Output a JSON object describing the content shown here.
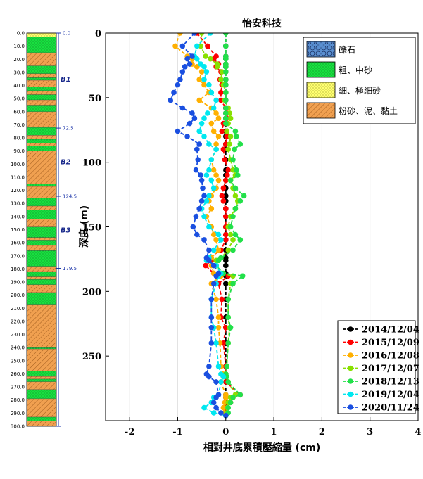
{
  "chart_data": {
    "type": "line",
    "title": "怡安科技",
    "xlabel": "相對井底累積壓縮量 (cm)",
    "ylabel": "深度 (m)",
    "xlim": [
      -2.5,
      4
    ],
    "ylim": [
      0,
      300
    ],
    "x_ticks": [
      "-2",
      "-1",
      "0",
      "1",
      "2",
      "3",
      "4"
    ],
    "x_tick_values": [
      -2,
      -1,
      0,
      1,
      2,
      3,
      4
    ],
    "y_ticks": [
      "0",
      "50",
      "100",
      "150",
      "200",
      "250"
    ],
    "y_tick_values": [
      0,
      50,
      100,
      150,
      200,
      250
    ],
    "depths": [
      0,
      10,
      18,
      20,
      24,
      26,
      30,
      36,
      40,
      46,
      52,
      58,
      62,
      66,
      70,
      76,
      80,
      86,
      90,
      98,
      106,
      110,
      114,
      120,
      126,
      130,
      136,
      142,
      150,
      156,
      160,
      168,
      174,
      176,
      180,
      186,
      188,
      194,
      206,
      220,
      228,
      240,
      258,
      264,
      266,
      270,
      280,
      282,
      286,
      290,
      294,
      296
    ],
    "series": [
      {
        "name": "2014/12/04",
        "color": "#000000",
        "values": [
          0,
          0,
          0,
          0,
          0,
          0,
          0,
          0,
          0,
          0,
          0,
          0,
          0,
          0,
          0,
          0,
          0,
          0,
          0,
          0,
          0,
          0,
          0,
          0,
          0,
          0,
          0,
          0,
          0,
          0,
          0,
          0,
          0,
          0,
          0,
          0,
          0,
          0,
          0,
          0,
          0,
          0,
          0,
          0,
          0,
          0,
          0,
          0,
          0,
          0,
          0,
          0
        ]
      },
      {
        "name": "2015/12/09",
        "color": "#ff0000",
        "values": [
          -0.6,
          -0.38,
          -0.2,
          -0.25,
          -0.15,
          -0.2,
          -0.1,
          -0.12,
          -0.08,
          -0.1,
          -0.1,
          0,
          0.02,
          0.02,
          -0.05,
          -0.08,
          0.02,
          0,
          -0.05,
          -0.02,
          0.05,
          0.03,
          0,
          -0.05,
          -0.08,
          -0.05,
          0,
          0,
          0,
          0,
          0,
          -0.1,
          -0.35,
          -0.3,
          -0.42,
          -0.25,
          0.05,
          -0.15,
          -0.08,
          -0.1,
          0,
          -0.05,
          0,
          0,
          0,
          0,
          0.3,
          0.15,
          0.1,
          0,
          0,
          0
        ]
      },
      {
        "name": "2016/12/08",
        "color": "#ffb000",
        "values": [
          -0.95,
          -1.05,
          -0.8,
          -0.7,
          -0.7,
          -0.6,
          -0.5,
          -0.55,
          -0.45,
          -0.35,
          -0.55,
          -0.3,
          -0.2,
          -0.15,
          -0.3,
          -0.25,
          -0.15,
          -0.2,
          -0.2,
          -0.3,
          -0.25,
          -0.2,
          -0.15,
          -0.2,
          -0.3,
          -0.35,
          -0.3,
          -0.4,
          -0.3,
          -0.25,
          -0.2,
          -0.15,
          -0.3,
          -0.35,
          -0.3,
          -0.25,
          -0.1,
          -0.3,
          -0.2,
          -0.15,
          -0.15,
          -0.12,
          -0.1,
          -0.05,
          -0.05,
          -0.1,
          0,
          0,
          -0.02,
          -0.05,
          -0.03,
          0
        ]
      },
      {
        "name": "2017/12/07",
        "color": "#88e000",
        "values": [
          -0.5,
          -0.52,
          -0.42,
          -0.32,
          -0.18,
          -0.18,
          -0.08,
          -0.1,
          -0.05,
          0,
          -0.02,
          0.05,
          0.08,
          0.1,
          0.05,
          0.02,
          0.1,
          0.08,
          0.05,
          0.1,
          0.15,
          0.2,
          0.1,
          0.15,
          0.2,
          0.25,
          0.2,
          0.1,
          0.05,
          0.1,
          0.15,
          0.05,
          -0.1,
          -0.2,
          -0.2,
          -0.1,
          0.15,
          0.1,
          0.05,
          0.05,
          0.08,
          0.05,
          0.02,
          0,
          0.02,
          0.05,
          0.2,
          0.1,
          0.05,
          0.03,
          0.02,
          0
        ]
      },
      {
        "name": "2018/12/13",
        "color": "#22e04a",
        "values": [
          0,
          0,
          0,
          0,
          0,
          0,
          0,
          0,
          0,
          0,
          0,
          0,
          0,
          0,
          0,
          0.2,
          0.22,
          0.3,
          0.18,
          0.15,
          0.22,
          0.25,
          0.1,
          0.2,
          0.38,
          0.3,
          0.2,
          0.15,
          0.1,
          0.2,
          0.3,
          0.15,
          -0.1,
          -0.15,
          -0.2,
          -0.05,
          0.35,
          0.15,
          0.05,
          0.05,
          0.1,
          0.05,
          0.02,
          0,
          0.02,
          0.05,
          0.3,
          0.15,
          0.1,
          0.05,
          0.05,
          0
        ]
      },
      {
        "name": "2019/12/04",
        "color": "#00e8f0",
        "values": [
          -0.32,
          -0.6,
          -0.65,
          -0.6,
          -0.52,
          -0.45,
          -0.4,
          -0.45,
          -0.35,
          -0.3,
          -0.2,
          -0.25,
          -0.38,
          -0.45,
          -0.5,
          -0.55,
          -0.45,
          -0.35,
          -0.2,
          -0.3,
          -0.35,
          -0.4,
          -0.3,
          -0.25,
          -0.35,
          -0.4,
          -0.5,
          -0.45,
          -0.35,
          -0.15,
          -0.1,
          -0.25,
          -0.35,
          -0.4,
          -0.2,
          -0.1,
          -0.15,
          -0.2,
          -0.3,
          -0.3,
          -0.25,
          -0.2,
          -0.15,
          -0.1,
          -0.05,
          -0.1,
          -0.15,
          -0.25,
          -0.3,
          -0.45,
          -0.25,
          0
        ]
      },
      {
        "name": "2020/11/24",
        "color": "#1a4fe0",
        "values": [
          -0.65,
          -0.9,
          -0.7,
          -0.8,
          -0.75,
          -0.85,
          -0.9,
          -0.95,
          -1.0,
          -1.08,
          -1.15,
          -0.9,
          -0.7,
          -0.65,
          -0.75,
          -1.0,
          -0.8,
          -0.55,
          -0.6,
          -0.58,
          -0.62,
          -0.52,
          -0.5,
          -0.48,
          -0.45,
          -0.5,
          -0.55,
          -0.62,
          -0.68,
          -0.6,
          -0.45,
          -0.35,
          -0.4,
          -0.35,
          -0.25,
          -0.15,
          -0.2,
          -0.25,
          -0.3,
          -0.3,
          -0.3,
          -0.3,
          -0.35,
          -0.4,
          -0.35,
          -0.2,
          -0.15,
          -0.2,
          -0.25,
          -0.2,
          -0.1,
          0
        ]
      }
    ]
  },
  "lithology_legend": [
    {
      "label": "礫石",
      "fill": "#5a8fd0",
      "pattern": "gravel"
    },
    {
      "label": "粗、中砂",
      "fill": "#18e040",
      "pattern": "dots"
    },
    {
      "label": "細、極細砂",
      "fill": "#ffff70",
      "pattern": "dots"
    },
    {
      "label": "粉砂、泥、黏土",
      "fill": "#f0a050",
      "pattern": "hatch"
    }
  ],
  "borehole_column": {
    "depth_labels": [
      "0.0",
      "10.0",
      "20.0",
      "30.0",
      "40.0",
      "50.0",
      "60.0",
      "70.0",
      "80.0",
      "90.0",
      "100.0",
      "110.0",
      "120.0",
      "130.0",
      "140.0",
      "150.0",
      "160.0",
      "170.0",
      "180.0",
      "190.0",
      "200.0",
      "210.0",
      "220.0",
      "230.0",
      "240.0",
      "250.0",
      "260.0",
      "270.0",
      "280.0",
      "290.0",
      "300.0"
    ],
    "depth_values": [
      0,
      10,
      20,
      30,
      40,
      50,
      60,
      70,
      80,
      90,
      100,
      110,
      120,
      130,
      140,
      150,
      160,
      170,
      180,
      190,
      200,
      210,
      220,
      230,
      240,
      250,
      260,
      270,
      280,
      290,
      300
    ],
    "layers": [
      {
        "top": 0,
        "bottom": 3,
        "type": "fine_sand"
      },
      {
        "top": 3,
        "bottom": 15,
        "type": "coarse_sand"
      },
      {
        "top": 15,
        "bottom": 25,
        "type": "silt_clay"
      },
      {
        "top": 25,
        "bottom": 31,
        "type": "coarse_sand"
      },
      {
        "top": 31,
        "bottom": 34,
        "type": "silt_clay"
      },
      {
        "top": 34,
        "bottom": 36,
        "type": "coarse_sand"
      },
      {
        "top": 36,
        "bottom": 41,
        "type": "silt_clay"
      },
      {
        "top": 41,
        "bottom": 44,
        "type": "coarse_sand"
      },
      {
        "top": 44,
        "bottom": 47,
        "type": "silt_clay"
      },
      {
        "top": 47,
        "bottom": 51,
        "type": "coarse_sand"
      },
      {
        "top": 51,
        "bottom": 55,
        "type": "silt_clay"
      },
      {
        "top": 55,
        "bottom": 60,
        "type": "coarse_sand"
      },
      {
        "top": 60,
        "bottom": 72,
        "type": "silt_clay"
      },
      {
        "top": 72,
        "bottom": 78,
        "type": "coarse_sand"
      },
      {
        "top": 78,
        "bottom": 81,
        "type": "silt_clay"
      },
      {
        "top": 81,
        "bottom": 84,
        "type": "coarse_sand"
      },
      {
        "top": 84,
        "bottom": 86,
        "type": "silt_clay"
      },
      {
        "top": 86,
        "bottom": 90,
        "type": "coarse_sand"
      },
      {
        "top": 90,
        "bottom": 115,
        "type": "silt_clay"
      },
      {
        "top": 115,
        "bottom": 117,
        "type": "coarse_sand"
      },
      {
        "top": 117,
        "bottom": 126,
        "type": "silt_clay"
      },
      {
        "top": 126,
        "bottom": 132,
        "type": "coarse_sand"
      },
      {
        "top": 132,
        "bottom": 135,
        "type": "silt_clay"
      },
      {
        "top": 135,
        "bottom": 142,
        "type": "coarse_sand"
      },
      {
        "top": 142,
        "bottom": 148,
        "type": "silt_clay"
      },
      {
        "top": 148,
        "bottom": 156,
        "type": "coarse_sand"
      },
      {
        "top": 156,
        "bottom": 158,
        "type": "silt_clay"
      },
      {
        "top": 158,
        "bottom": 162,
        "type": "coarse_sand"
      },
      {
        "top": 162,
        "bottom": 166,
        "type": "silt_clay"
      },
      {
        "top": 166,
        "bottom": 178,
        "type": "coarse_sand"
      },
      {
        "top": 178,
        "bottom": 182,
        "type": "silt_clay"
      },
      {
        "top": 182,
        "bottom": 186,
        "type": "coarse_sand"
      },
      {
        "top": 186,
        "bottom": 188,
        "type": "silt_clay"
      },
      {
        "top": 188,
        "bottom": 192,
        "type": "coarse_sand"
      },
      {
        "top": 192,
        "bottom": 198,
        "type": "silt_clay"
      },
      {
        "top": 198,
        "bottom": 207,
        "type": "coarse_sand"
      },
      {
        "top": 207,
        "bottom": 240,
        "type": "silt_clay"
      },
      {
        "top": 240,
        "bottom": 241,
        "type": "coarse_sand"
      },
      {
        "top": 241,
        "bottom": 258,
        "type": "silt_clay"
      },
      {
        "top": 258,
        "bottom": 262,
        "type": "coarse_sand"
      },
      {
        "top": 262,
        "bottom": 264,
        "type": "silt_clay"
      },
      {
        "top": 264,
        "bottom": 266,
        "type": "coarse_sand"
      },
      {
        "top": 266,
        "bottom": 272,
        "type": "silt_clay"
      },
      {
        "top": 272,
        "bottom": 279,
        "type": "coarse_sand"
      },
      {
        "top": 279,
        "bottom": 293,
        "type": "silt_clay"
      },
      {
        "top": 293,
        "bottom": 296,
        "type": "coarse_sand"
      },
      {
        "top": 296,
        "bottom": 300,
        "type": "silt_clay"
      }
    ],
    "markers": [
      "0.0",
      "72.5",
      "124.5",
      "179.5"
    ],
    "marker_values": [
      0,
      72.5,
      124.5,
      179.5
    ],
    "segments": [
      {
        "label": "B1",
        "depth": 35
      },
      {
        "label": "B2",
        "depth": 98
      },
      {
        "label": "B3",
        "depth": 150
      }
    ]
  }
}
